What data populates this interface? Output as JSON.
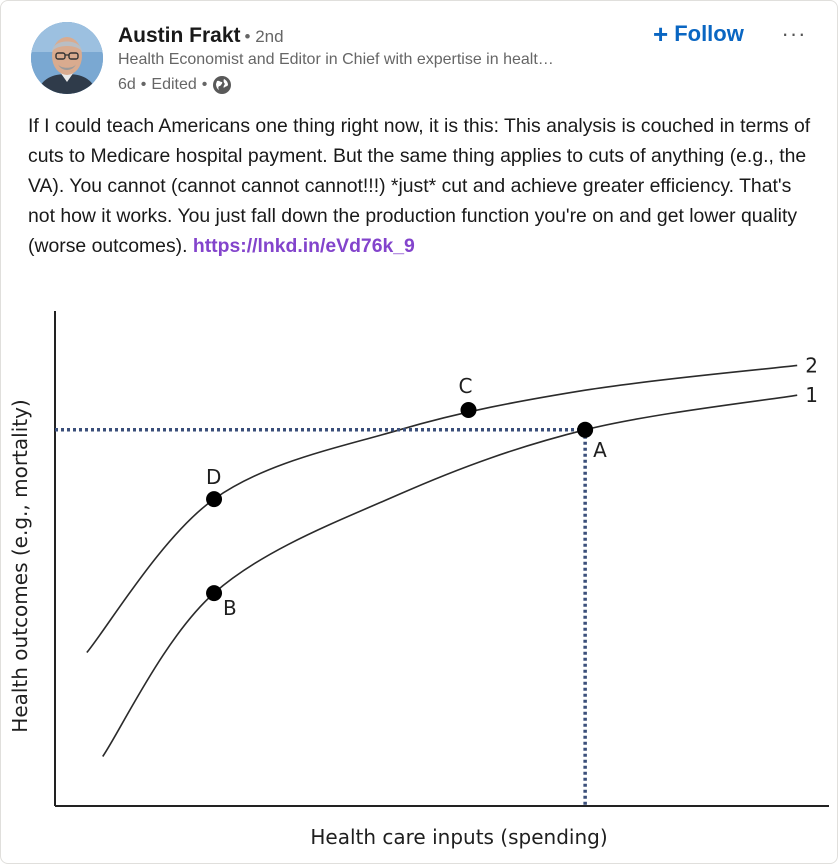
{
  "author": {
    "name": "Austin Frakt",
    "degree": "• 2nd",
    "headline": "Health Economist and Editor in Chief with expertise in healt…",
    "time": "6d",
    "edited": "Edited",
    "sep": "•",
    "visibility_icon": "globe-icon",
    "avatar_icon": "profile-photo"
  },
  "actions": {
    "follow_plus": "+",
    "follow_label": "Follow",
    "more_label": "···"
  },
  "post": {
    "body": "If I could teach Americans one thing right now, it is this: This analysis is couched in terms of cuts to Medicare hospital payment. But the same thing applies to cuts of anything (e.g., the VA). You cannot (cannot cannot cannot!!!) *just* cut and achieve greater efficiency. That's not how it works. You just fall down the production function you're on and get lower quality (worse outcomes). ",
    "link": "https://lnkd.in/eVd76k_9"
  },
  "colors": {
    "accent": "#0a66c2",
    "link": "#8344cc",
    "dotted_line": "#3b4f7a"
  },
  "chart_data": {
    "type": "line",
    "xlabel": "Health care inputs (spending)",
    "ylabel": "Health outcomes (e.g., mortality)",
    "series": [
      {
        "name": "2",
        "x": [
          0.6,
          3,
          6.5,
          10,
          14
        ],
        "y": [
          3.1,
          6.2,
          7.6,
          8.4,
          8.9
        ]
      },
      {
        "name": "1",
        "x": [
          0.9,
          3,
          6.5,
          10,
          14
        ],
        "y": [
          1.0,
          4.3,
          6.3,
          7.6,
          8.3
        ]
      }
    ],
    "points": [
      {
        "label": "D",
        "x": 3,
        "y": 6.2
      },
      {
        "label": "C",
        "x": 7.8,
        "y": 8.0
      },
      {
        "label": "B",
        "x": 3,
        "y": 4.3
      },
      {
        "label": "A",
        "x": 10,
        "y": 7.6
      }
    ],
    "xlim": [
      0,
      14.6
    ],
    "ylim": [
      0,
      10
    ],
    "grid": false
  }
}
